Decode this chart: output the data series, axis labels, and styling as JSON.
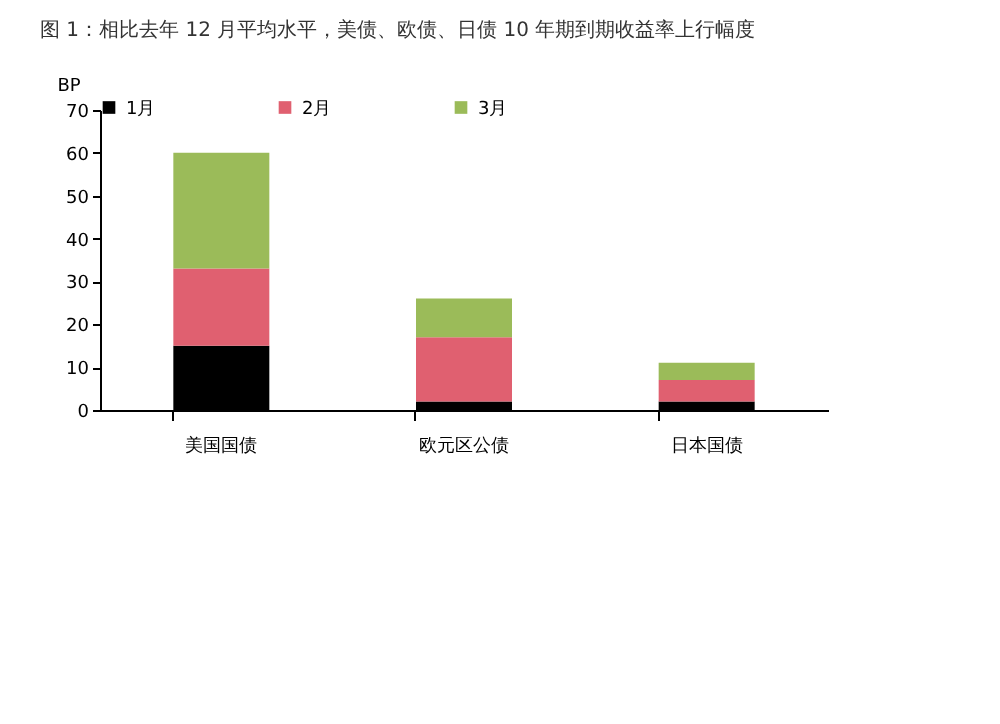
{
  "chart_data": {
    "type": "bar",
    "title": "图 1：相比去年 12 月平均水平，美债、欧债、日债 10 年期到期收益率上行幅度",
    "ylabel": "BP",
    "categories": [
      "美国国债",
      "欧元区公债",
      "日本国债"
    ],
    "stacked": true,
    "series": [
      {
        "name": "1月",
        "color": "#000000",
        "values": [
          15,
          2,
          2
        ]
      },
      {
        "name": "2月",
        "color": "#e06070",
        "values": [
          18,
          15,
          5
        ]
      },
      {
        "name": "3月",
        "color": "#9bbb59",
        "values": [
          27,
          9,
          4
        ]
      }
    ],
    "ylim": [
      0,
      70
    ],
    "yticks": [
      0,
      10,
      20,
      30,
      40,
      50,
      60,
      70
    ],
    "grid": false,
    "legend": "top"
  }
}
